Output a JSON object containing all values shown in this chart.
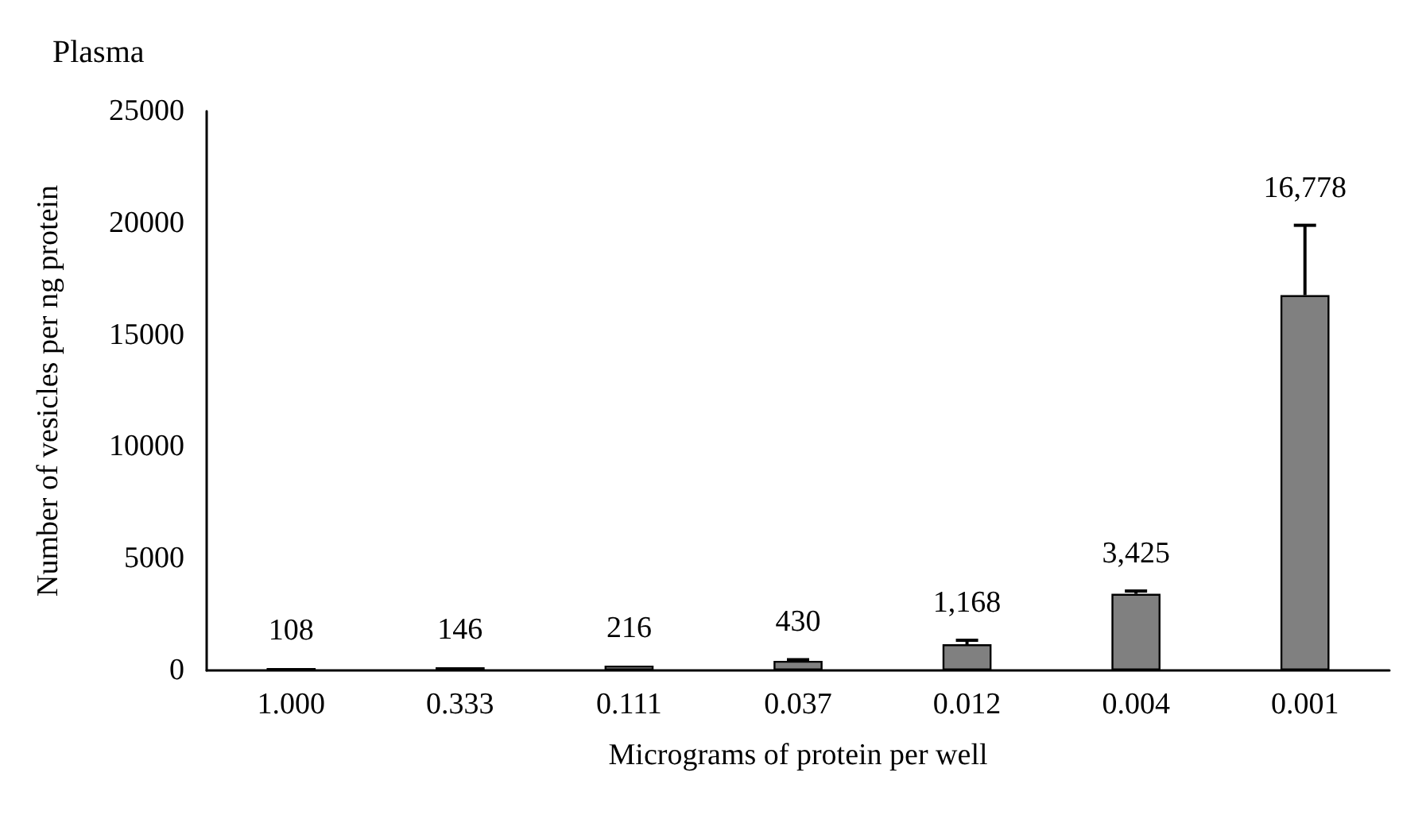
{
  "chart_data": {
    "type": "bar",
    "title": "Plasma",
    "xlabel": "Micrograms of protein per well",
    "ylabel": "Number of vesicles per ng protein",
    "categories": [
      "1.000",
      "0.333",
      "0.111",
      "0.037",
      "0.012",
      "0.004",
      "0.001"
    ],
    "values": [
      108,
      146,
      216,
      430,
      1168,
      3425,
      16778
    ],
    "value_labels": [
      "108",
      "146",
      "216",
      "430",
      "1,168",
      "3,425",
      "16,778"
    ],
    "errors": [
      null,
      null,
      null,
      [
        430,
        480
      ],
      [
        1168,
        1350
      ],
      [
        3425,
        3550
      ],
      [
        16778,
        19900
      ]
    ],
    "color": "#808080",
    "ylim": [
      0,
      25000
    ],
    "yticks": [
      0,
      5000,
      10000,
      15000,
      20000,
      25000
    ],
    "grid": false
  }
}
